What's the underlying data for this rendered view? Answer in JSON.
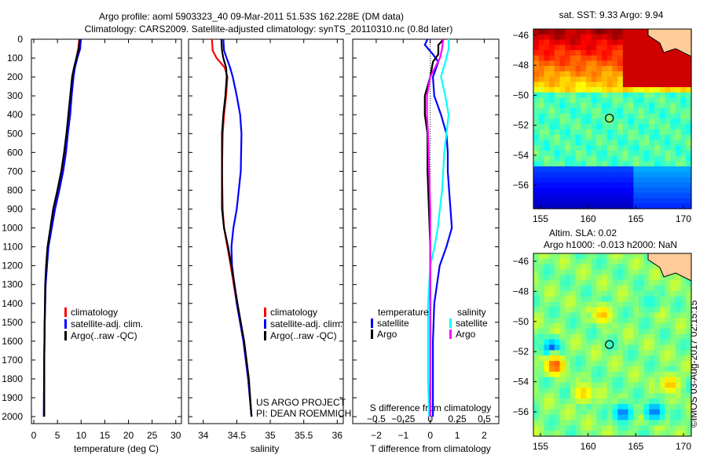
{
  "title_line1": "Argo profile: aoml 5903323_40 09-Mar-2011 51.53S 162.228E (DM data)",
  "title_line2": "Climatology: CARS2009. Satellite-adjusted climatology: synTS_20110310.nc (0.8d later)",
  "footer_stamp": "©IMOS 03-Aug-2017 02:15:15",
  "colors": {
    "climatology": "#ff0000",
    "satellite": "#0000ff",
    "argo": "#000000",
    "sal_satellite": "#00ffff",
    "sal_argo": "#ff00ff",
    "land": "#ffcc99"
  },
  "chart_data": [
    {
      "type": "line",
      "name": "temperature",
      "xlabel": "temperature (deg C)",
      "ylabel": "",
      "xlim": [
        -0.5,
        31.2
      ],
      "ylim": [
        0,
        2037
      ],
      "xticks": [
        0,
        5,
        10,
        15,
        20,
        25,
        30
      ],
      "yticks": [
        0,
        100,
        200,
        300,
        400,
        500,
        600,
        700,
        800,
        900,
        1000,
        1100,
        1200,
        1300,
        1400,
        1500,
        1600,
        1700,
        1800,
        1900,
        2000
      ],
      "legend": [
        "climatology",
        "satellite-adj. clim.",
        "Argo(..raw -QC)"
      ],
      "series": [
        {
          "name": "climatology",
          "color": "#ff0000",
          "depth": [
            0,
            50,
            100,
            150,
            200,
            300,
            400,
            500,
            600,
            700,
            800,
            900,
            1000,
            1100,
            1200,
            1300,
            1500,
            1700,
            2000
          ],
          "values": [
            9.6,
            9.4,
            9.0,
            8.6,
            8.3,
            7.9,
            7.5,
            7.0,
            6.5,
            5.9,
            5.1,
            4.2,
            3.6,
            3.0,
            2.7,
            2.5,
            2.3,
            2.2,
            2.2
          ]
        },
        {
          "name": "satellite-adj. clim.",
          "color": "#0000ff",
          "depth": [
            0,
            50,
            100,
            150,
            200,
            300,
            400,
            500,
            600,
            700,
            800,
            900,
            1000,
            1100,
            1200,
            1300,
            1500,
            1700,
            2000
          ],
          "values": [
            9.9,
            9.8,
            9.2,
            8.7,
            8.4,
            8.0,
            7.7,
            7.2,
            6.8,
            6.2,
            5.4,
            4.5,
            3.8,
            3.1,
            2.8,
            2.5,
            2.3,
            2.2,
            2.1
          ]
        },
        {
          "name": "Argo(..raw -QC)",
          "color": "#000000",
          "depth": [
            0,
            50,
            100,
            150,
            200,
            300,
            400,
            500,
            600,
            700,
            800,
            900,
            1000,
            1100,
            1200,
            1300,
            1500,
            1700,
            2000
          ],
          "values": [
            9.7,
            9.5,
            9.0,
            8.5,
            8.1,
            7.7,
            7.3,
            6.9,
            6.4,
            5.8,
            5.0,
            4.1,
            3.5,
            2.9,
            2.6,
            2.4,
            2.3,
            2.2,
            2.2
          ]
        }
      ]
    },
    {
      "type": "line",
      "name": "salinity",
      "xlabel": "salinity",
      "ylabel": "",
      "xlim": [
        33.78,
        36.09
      ],
      "ylim": [
        0,
        2037
      ],
      "xticks": [
        34,
        34.5,
        35,
        35.5,
        36
      ],
      "legend": [
        "climatology",
        "satellite-adj. clim.",
        "Argo(..raw -QC)"
      ],
      "annotation": [
        "US ARGO PROJECT",
        "PI: DEAN ROEMMICH"
      ],
      "series": [
        {
          "name": "climatology",
          "color": "#ff0000",
          "depth": [
            0,
            60,
            100,
            150,
            200,
            300,
            400,
            500,
            700,
            900,
            1000,
            1100,
            1200,
            1400,
            1600,
            1800,
            2000
          ],
          "values": [
            34.13,
            34.14,
            34.2,
            34.32,
            34.36,
            34.34,
            34.31,
            34.29,
            34.28,
            34.29,
            34.31,
            34.36,
            34.41,
            34.5,
            34.6,
            34.67,
            34.72
          ]
        },
        {
          "name": "satellite-adj. clim.",
          "color": "#0000ff",
          "depth": [
            0,
            60,
            100,
            150,
            200,
            300,
            400,
            500,
            700,
            900,
            1000,
            1100,
            1200,
            1400,
            1600,
            1800,
            2000
          ],
          "values": [
            34.3,
            34.31,
            34.35,
            34.4,
            34.44,
            34.5,
            34.55,
            34.57,
            34.56,
            34.5,
            34.45,
            34.42,
            34.43,
            34.5,
            34.6,
            34.67,
            34.72
          ]
        },
        {
          "name": "Argo(..raw -QC)",
          "color": "#000000",
          "depth": [
            0,
            60,
            100,
            150,
            200,
            300,
            400,
            500,
            700,
            900,
            1000,
            1100,
            1200,
            1400,
            1600,
            1800,
            2000
          ],
          "values": [
            34.27,
            34.28,
            34.3,
            34.34,
            34.35,
            34.33,
            34.3,
            34.28,
            34.28,
            34.28,
            34.31,
            34.37,
            34.42,
            34.51,
            34.61,
            34.68,
            34.72
          ]
        }
      ]
    },
    {
      "type": "line",
      "name": "differences",
      "xlabel": "T difference from climatology",
      "x2label": "S difference from climatology",
      "xlim": [
        -2.87,
        2.54
      ],
      "ylim": [
        0,
        2037
      ],
      "xticks": [
        -2,
        -1,
        0,
        1,
        2
      ],
      "x2ticks": [
        -0.5,
        -0.25,
        0,
        0.25,
        0.5
      ],
      "x2_scale": 0.25,
      "legend_titles": [
        "temperature",
        "salinity"
      ],
      "legend": [
        "satellite",
        "Argo",
        "satellite",
        "Argo"
      ],
      "series": [
        {
          "name": "T satellite",
          "color": "#0000ff",
          "scale": "T",
          "depth": [
            0,
            30,
            80,
            120,
            200,
            300,
            400,
            500,
            600,
            700,
            800,
            900,
            1000,
            1100,
            1200,
            1400,
            1600,
            1800,
            2000
          ],
          "values": [
            -0.1,
            -0.2,
            0.1,
            0.3,
            0.1,
            0.15,
            0.4,
            0.6,
            0.65,
            0.65,
            0.7,
            0.75,
            0.8,
            0.6,
            0.35,
            0.15,
            0.1,
            0.1,
            0.1
          ]
        },
        {
          "name": "T Argo",
          "color": "#000000",
          "scale": "T",
          "depth": [
            0,
            30,
            80,
            120,
            200,
            300,
            400,
            500,
            700,
            900,
            1100,
            1400,
            1700,
            2000
          ],
          "values": [
            0.5,
            0.3,
            0.3,
            0.1,
            0,
            -0.2,
            -0.2,
            -0.1,
            -0.1,
            -0.05,
            0,
            0,
            0,
            0
          ]
        },
        {
          "name": "S satellite",
          "color": "#00ffff",
          "scale": "S",
          "depth": [
            0,
            50,
            100,
            200,
            300,
            400,
            500,
            600,
            700,
            800,
            900,
            1000,
            1100,
            1200,
            1400,
            1600,
            1800,
            2000
          ],
          "values": [
            0.17,
            0.17,
            0.15,
            0.1,
            0.14,
            0.17,
            0.15,
            0.13,
            0.12,
            0.11,
            0.09,
            0.07,
            0.04,
            0.0,
            -0.02,
            -0.02,
            -0.02,
            -0.01
          ]
        },
        {
          "name": "S Argo",
          "color": "#ff00ff",
          "scale": "S",
          "depth": [
            0,
            50,
            100,
            200,
            300,
            400,
            500,
            700,
            900,
            1100,
            1400,
            1700,
            2000
          ],
          "values": [
            0.12,
            0.11,
            0.09,
            0.0,
            -0.03,
            -0.03,
            -0.02,
            -0.01,
            0,
            0,
            0,
            0,
            0
          ]
        }
      ]
    },
    {
      "type": "heatmap",
      "name": "sst-map",
      "title": "sat. SST: 9.33 Argo: 9.94",
      "xticks": [
        155,
        160,
        165,
        170
      ],
      "yticks": [
        -46,
        -48,
        -50,
        -52,
        -54,
        -56
      ],
      "xlim": [
        154.2,
        170.8
      ],
      "ylim": [
        -57.5,
        -45.6
      ],
      "marker": [
        162.228,
        -51.53
      ]
    },
    {
      "type": "heatmap",
      "name": "sla-map",
      "title": "Altim. SLA: 0.02",
      "subtitle": "Argo h1000: -0.013 h2000: NaN",
      "xticks": [
        155,
        160,
        165,
        170
      ],
      "yticks": [
        -46,
        -48,
        -50,
        -52,
        -54,
        -56
      ],
      "xlim": [
        154.2,
        170.8
      ],
      "ylim": [
        -57.5,
        -45.6
      ],
      "marker": [
        162.228,
        -51.53
      ]
    }
  ]
}
